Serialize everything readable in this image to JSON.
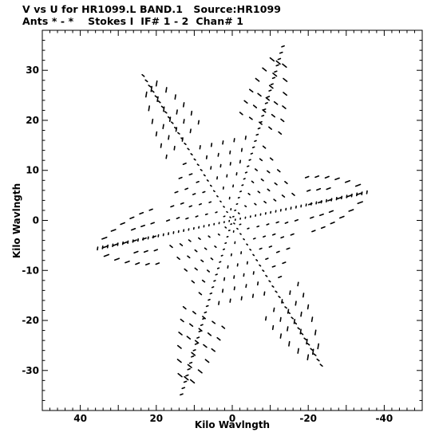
{
  "header": {
    "line1": "V vs U for HR1099.L BAND.1   Source:HR1099",
    "line2": "Ants * - *    Stokes I  IF# 1 - 2  Chan# 1"
  },
  "chart_data": {
    "type": "scatter",
    "title": "V vs U for HR1099.L BAND.1   Source:HR1099",
    "subtitle": "Ants * - *    Stokes I  IF# 1 - 2  Chan# 1",
    "xlabel": "Kilo Wavlngth",
    "ylabel": "Kilo Wavlngth",
    "xlim": [
      50,
      -50
    ],
    "ylim": [
      -38,
      38
    ],
    "x_reversed": true,
    "x_ticks": [
      40,
      20,
      0,
      -20,
      -40
    ],
    "y_ticks": [
      30,
      20,
      10,
      0,
      -10,
      -20,
      -30
    ],
    "x_tick_labels": [
      "40",
      "20",
      "0",
      "-20",
      "-40"
    ],
    "y_tick_labels": [
      "30",
      "20",
      "10",
      "0",
      "-10",
      "-20",
      "-30"
    ],
    "grid": false,
    "legend": "none",
    "marker_color": "#000000",
    "description_of_pattern": "",
    "tracks": [
      {
        "angle_deg": -9,
        "max_r": 37.0
      },
      {
        "angle_deg": 51,
        "max_r": 37.5
      },
      {
        "angle_deg": 111,
        "max_r": 37.5
      },
      {
        "angle_deg": 171,
        "max_r": 37.0
      },
      {
        "angle_deg": 231,
        "max_r": 37.5
      },
      {
        "angle_deg": 291,
        "max_r": 37.5
      }
    ]
  }
}
